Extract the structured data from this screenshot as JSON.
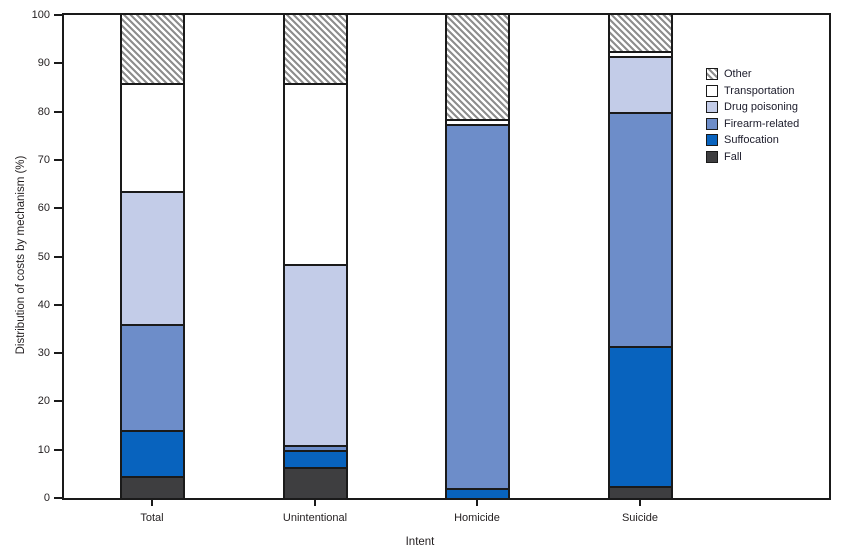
{
  "chart_data": {
    "type": "bar",
    "stacked": true,
    "title": "",
    "xlabel": "Intent",
    "ylabel": "Distribution of costs by mechanism (%)",
    "ylim": [
      0,
      100
    ],
    "yticks": [
      0,
      10,
      20,
      30,
      40,
      50,
      60,
      70,
      80,
      90,
      100
    ],
    "grid": false,
    "categories": [
      "Total",
      "Unintentional",
      "Homicide",
      "Suicide"
    ],
    "series": [
      {
        "name": "Fall",
        "color": "#3e3e40",
        "values": [
          4.5,
          6.5,
          0,
          2.5
        ]
      },
      {
        "name": "Suffocation",
        "color": "#0863be",
        "values": [
          9.5,
          3.5,
          2,
          29
        ]
      },
      {
        "name": "Firearm-related",
        "color": "#6d8dc9",
        "values": [
          22,
          1,
          75.5,
          48.5
        ]
      },
      {
        "name": "Drug poisoning",
        "color": "#c3cce8",
        "values": [
          27.5,
          37.5,
          0,
          11.5
        ]
      },
      {
        "name": "Transportation",
        "color": "#ffffff",
        "values": [
          22.5,
          37.5,
          1,
          1
        ]
      },
      {
        "name": "Other",
        "color": "hatch",
        "values": [
          14,
          14,
          21.5,
          7.5
        ]
      }
    ],
    "legend": [
      "Other",
      "Transportation",
      "Drug poisoning",
      "Firearm-related",
      "Suffocation",
      "Fall"
    ],
    "legend_position": "top-right-inside"
  },
  "layout_colors": {
    "axis_line": "#1a1a1a",
    "text": "#231f20",
    "background": "#ffffff",
    "hatch_stripe": "#8e8e8e"
  }
}
